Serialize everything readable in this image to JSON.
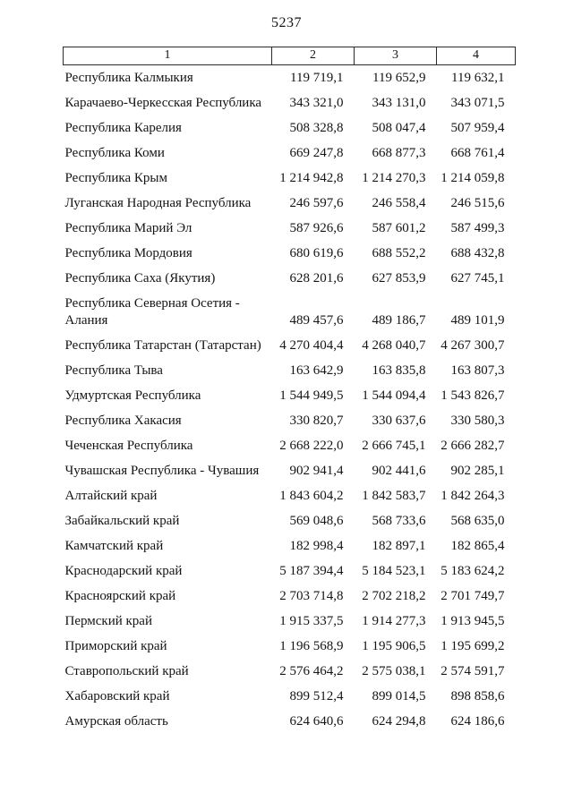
{
  "page": {
    "number": "5237"
  },
  "table": {
    "headers": [
      "1",
      "2",
      "3",
      "4"
    ],
    "rows": [
      [
        "Республика Калмыкия",
        "119 719,1",
        "119 652,9",
        "119 632,1"
      ],
      [
        "Карачаево-Черкесская Республика",
        "343 321,0",
        "343 131,0",
        "343 071,5"
      ],
      [
        "Республика Карелия",
        "508 328,8",
        "508 047,4",
        "507 959,4"
      ],
      [
        "Республика Коми",
        "669 247,8",
        "668 877,3",
        "668 761,4"
      ],
      [
        "Республика Крым",
        "1 214 942,8",
        "1 214 270,3",
        "1 214 059,8"
      ],
      [
        "Луганская Народная Республика",
        "246 597,6",
        "246 558,4",
        "246 515,6"
      ],
      [
        "Республика Марий Эл",
        "587 926,6",
        "587 601,2",
        "587 499,3"
      ],
      [
        "Республика Мордовия",
        "680 619,6",
        "688 552,2",
        "688 432,8"
      ],
      [
        "Республика Саха (Якутия)",
        "628 201,6",
        "627 853,9",
        "627 745,1"
      ],
      [
        "Республика Северная Осетия - Алания",
        "489 457,6",
        "489 186,7",
        "489 101,9"
      ],
      [
        "Республика Татарстан (Татарстан)",
        "4 270 404,4",
        "4 268 040,7",
        "4 267 300,7"
      ],
      [
        "Республика Тыва",
        "163 642,9",
        "163 835,8",
        "163 807,3"
      ],
      [
        "Удмуртская Республика",
        "1 544 949,5",
        "1 544 094,4",
        "1 543 826,7"
      ],
      [
        "Республика Хакасия",
        "330 820,7",
        "330 637,6",
        "330 580,3"
      ],
      [
        "Чеченская Республика",
        "2 668 222,0",
        "2 666 745,1",
        "2 666 282,7"
      ],
      [
        "Чувашская Республика - Чувашия",
        "902 941,4",
        "902 441,6",
        "902 285,1"
      ],
      [
        "Алтайский край",
        "1 843 604,2",
        "1 842 583,7",
        "1 842 264,3"
      ],
      [
        "Забайкальский край",
        "569 048,6",
        "568 733,6",
        "568 635,0"
      ],
      [
        "Камчатский край",
        "182 998,4",
        "182 897,1",
        "182 865,4"
      ],
      [
        "Краснодарский край",
        "5 187 394,4",
        "5 184 523,1",
        "5 183 624,2"
      ],
      [
        "Красноярский край",
        "2 703 714,8",
        "2 702 218,2",
        "2 701 749,7"
      ],
      [
        "Пермский край",
        "1 915 337,5",
        "1 914 277,3",
        "1 913 945,5"
      ],
      [
        "Приморский край",
        "1 196 568,9",
        "1 195 906,5",
        "1 195 699,2"
      ],
      [
        "Ставропольский край",
        "2 576 464,2",
        "2 575 038,1",
        "2 574 591,7"
      ],
      [
        "Хабаровский край",
        "899 512,4",
        "899 014,5",
        "898 858,6"
      ],
      [
        "Амурская область",
        "624 640,6",
        "624 294,8",
        "624 186,6"
      ]
    ]
  }
}
